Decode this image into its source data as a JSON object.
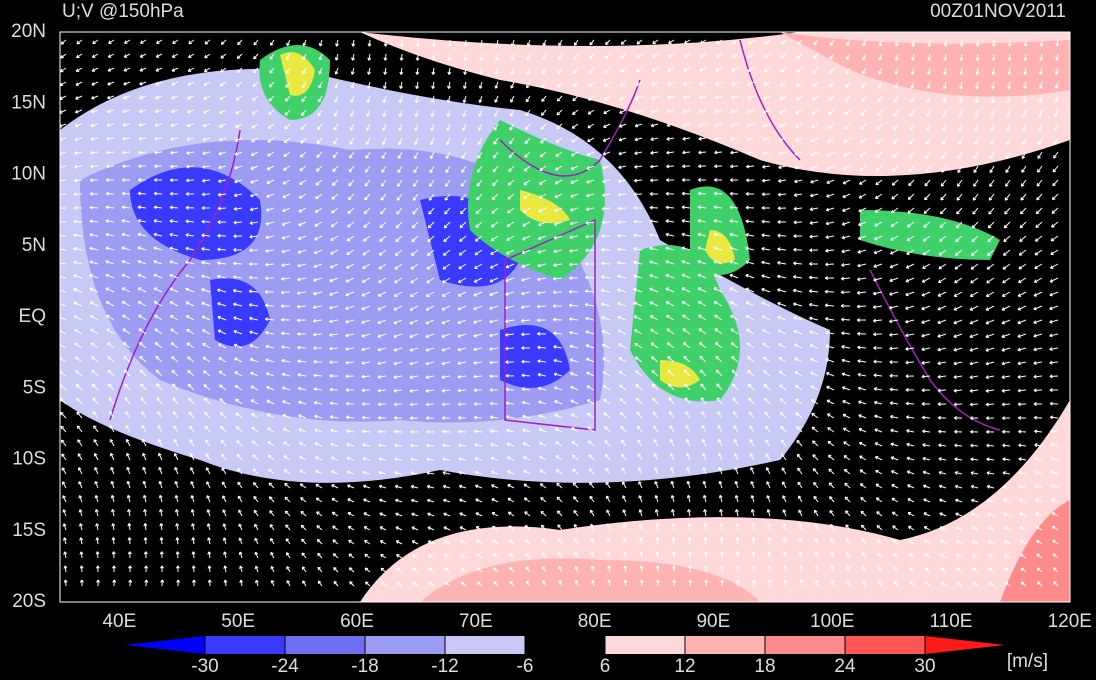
{
  "map": {
    "title": "U;V @150hPa",
    "time": "00Z01NOV2011",
    "lat_labels": [
      "20N",
      "15N",
      "10N",
      "5N",
      "EQ",
      "5S",
      "10S",
      "15S",
      "20S"
    ],
    "lon_labels": [
      "40E",
      "50E",
      "60E",
      "70E",
      "80E",
      "90E",
      "100E",
      "110E",
      "120E"
    ],
    "colorbar": {
      "levels": [
        -30,
        -24,
        -18,
        -12,
        -6,
        6,
        12,
        18,
        24,
        30
      ],
      "colors": [
        "#0000ff",
        "#3a3aff",
        "#6e6ef2",
        "#9c9cf2",
        "#c9c9f6",
        "#000000",
        "#ffd9d9",
        "#ffb3b3",
        "#ff8a8a",
        "#ff5555",
        "#ff1a1a"
      ],
      "units": "[m/s]"
    }
  }
}
